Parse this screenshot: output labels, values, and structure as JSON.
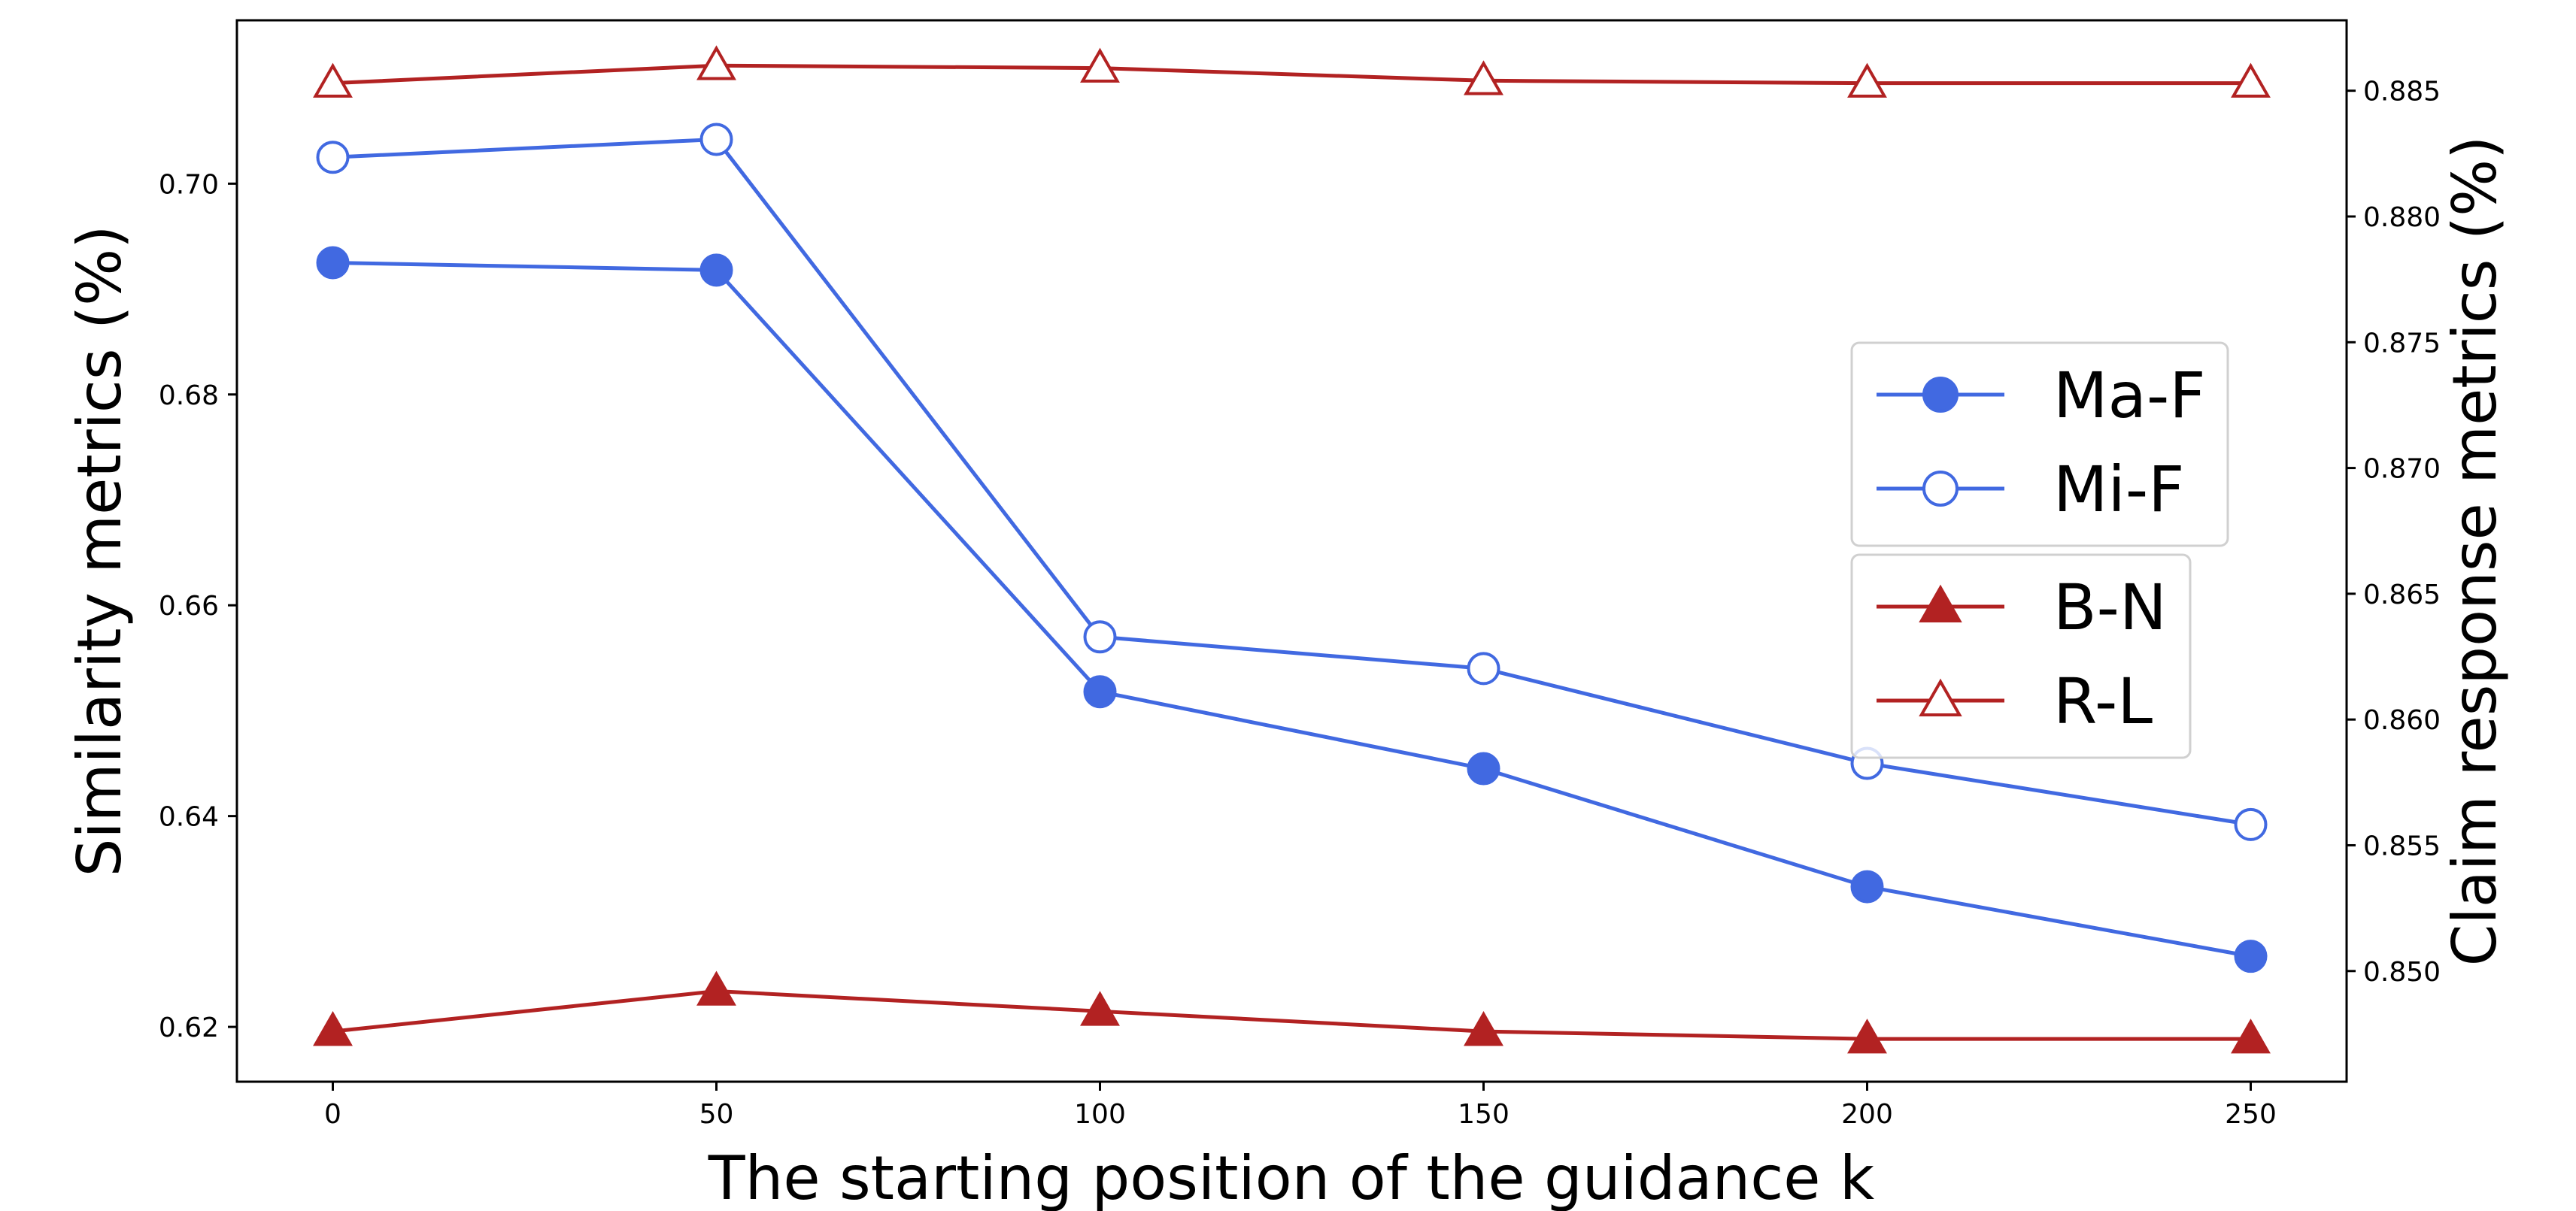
{
  "chart_data": {
    "type": "line",
    "x": [
      0,
      50,
      100,
      150,
      200,
      250
    ],
    "xlabel": "The starting position of the guidance k",
    "ylabel_left": "Similarity metrics (%)",
    "ylabel_right": "Claim response metrics (%)",
    "xlim": [
      -12.5,
      262.5
    ],
    "ylim_left": [
      0.6148,
      0.7155
    ],
    "ylim_right": [
      0.8456,
      0.8878
    ],
    "x_ticks": [
      "0",
      "50",
      "100",
      "150",
      "200",
      "250"
    ],
    "y_ticks_left": [
      "0.62",
      "0.64",
      "0.66",
      "0.68",
      "0.70"
    ],
    "y_ticks_right": [
      "0.850",
      "0.855",
      "0.860",
      "0.865",
      "0.870",
      "0.875",
      "0.880",
      "0.885"
    ],
    "grid": false,
    "series": [
      {
        "name": "Ma-F",
        "axis": "left",
        "values": [
          0.6925,
          0.6918,
          0.6518,
          0.6445,
          0.6333,
          0.6267
        ],
        "color": "#4169e1",
        "marker": "filled-circle"
      },
      {
        "name": "Mi-F",
        "axis": "left",
        "values": [
          0.7025,
          0.7042,
          0.657,
          0.654,
          0.645,
          0.6392
        ],
        "color": "#4169e1",
        "marker": "open-circle"
      },
      {
        "name": "B-N",
        "axis": "right",
        "values": [
          0.8476,
          0.8492,
          0.8484,
          0.8476,
          0.8473,
          0.8473
        ],
        "color": "#b22222",
        "marker": "filled-triangle"
      },
      {
        "name": "R-L",
        "axis": "right",
        "values": [
          0.8853,
          0.886,
          0.8859,
          0.8854,
          0.8853,
          0.8853
        ],
        "color": "#b22222",
        "marker": "open-triangle"
      }
    ],
    "legend": [
      {
        "placement": "center-right",
        "entries": [
          "Ma-F",
          "Mi-F"
        ]
      },
      {
        "placement": "center-right",
        "entries": [
          "B-N",
          "R-L"
        ]
      }
    ]
  }
}
